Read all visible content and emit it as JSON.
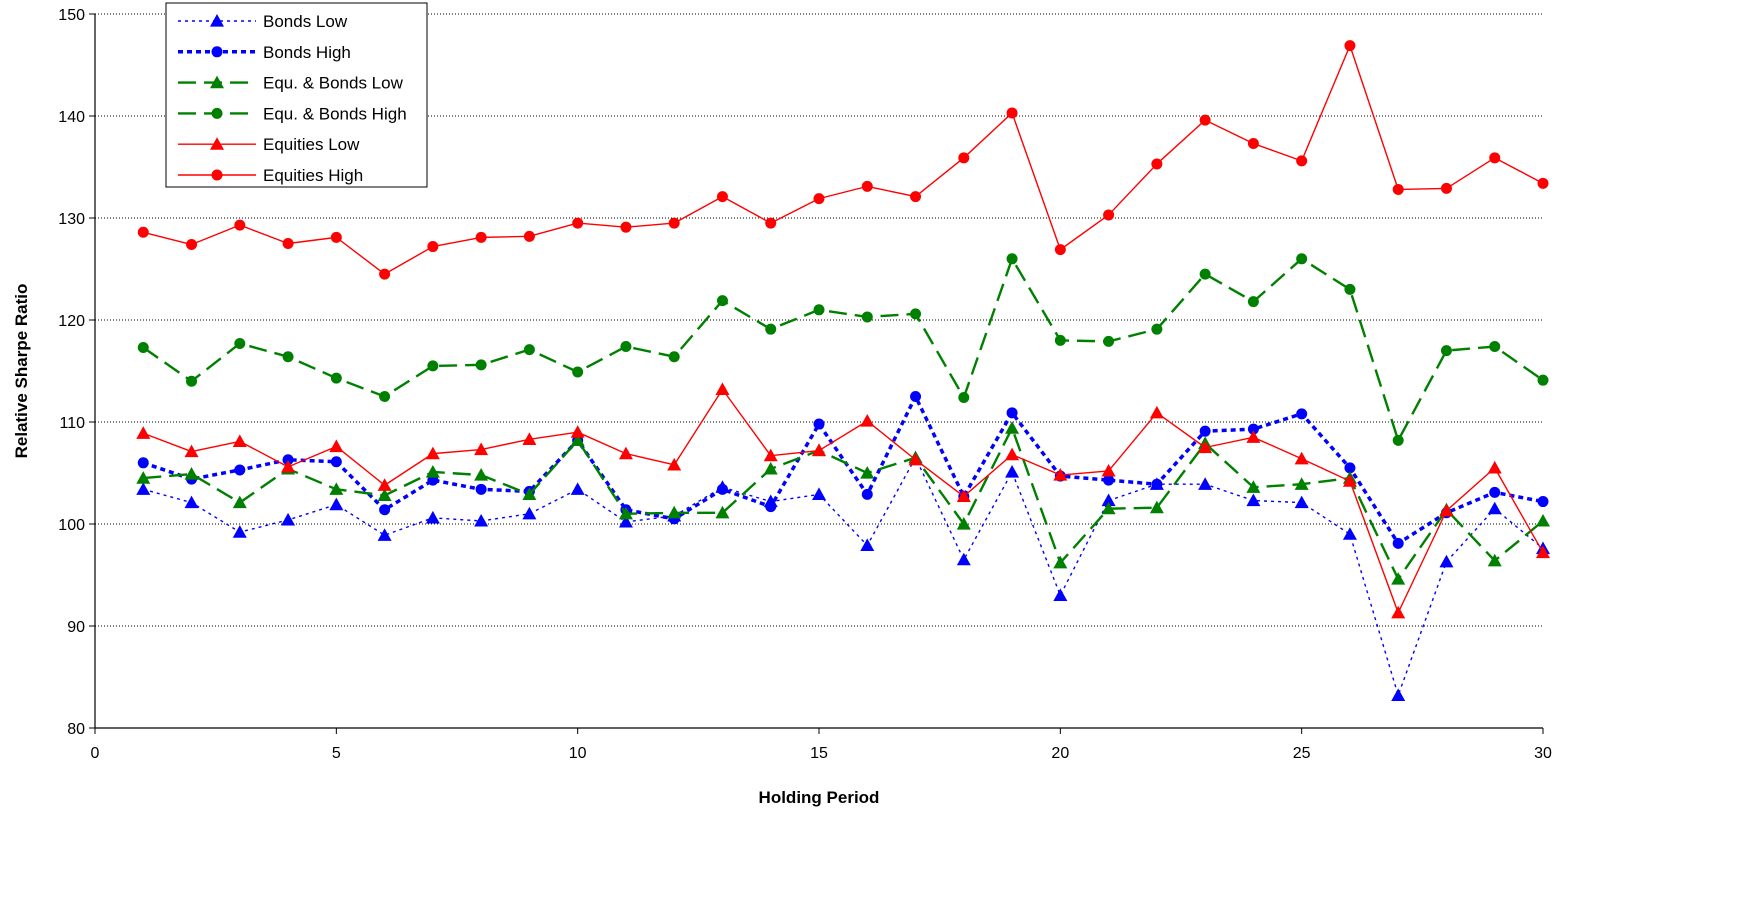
{
  "chart_data": {
    "type": "line",
    "xlabel": "Holding Period",
    "ylabel": "Relative Sharpe Ratio",
    "xlim": [
      0,
      30
    ],
    "ylim": [
      80,
      150
    ],
    "xticks": [
      0,
      5,
      10,
      15,
      20,
      25,
      30
    ],
    "yticks": [
      80,
      90,
      100,
      110,
      120,
      130,
      140,
      150
    ],
    "grid": "horizontal dotted",
    "legend_position": "top-left",
    "x": [
      1,
      2,
      3,
      4,
      5,
      6,
      7,
      8,
      9,
      10,
      11,
      12,
      13,
      14,
      15,
      16,
      17,
      18,
      19,
      20,
      21,
      22,
      23,
      24,
      25,
      26,
      27,
      28,
      29,
      30
    ],
    "series": [
      {
        "name": "Bonds Low",
        "color": "#0000ff",
        "marker": "triangle",
        "line_style": "fine-dotted",
        "values": [
          103.4,
          102.1,
          99.2,
          100.4,
          101.9,
          98.9,
          100.6,
          100.3,
          101.0,
          103.4,
          100.2,
          100.8,
          103.6,
          102.2,
          102.9,
          97.9,
          106.5,
          96.5,
          105.1,
          93.0,
          102.3,
          103.9,
          103.9,
          102.3,
          102.1,
          99.0,
          83.2,
          96.3,
          101.5,
          97.6
        ]
      },
      {
        "name": "Bonds High",
        "color": "#0000ff",
        "marker": "circle",
        "line_style": "dotted",
        "values": [
          106.0,
          104.4,
          105.3,
          106.3,
          106.1,
          101.4,
          104.3,
          103.4,
          103.2,
          108.2,
          101.4,
          100.5,
          103.4,
          101.7,
          109.8,
          102.9,
          112.5,
          102.7,
          110.9,
          104.7,
          104.3,
          103.9,
          109.1,
          109.3,
          110.8,
          105.5,
          98.1,
          101.1,
          103.1,
          102.2
        ]
      },
      {
        "name": "Equ. & Bonds Low",
        "color": "#008000",
        "marker": "triangle",
        "line_style": "dashed",
        "values": [
          104.5,
          104.9,
          102.1,
          105.4,
          103.4,
          102.8,
          105.1,
          104.8,
          102.9,
          108.2,
          101.0,
          101.1,
          101.1,
          105.4,
          107.2,
          105.0,
          106.5,
          100.0,
          109.4,
          96.2,
          101.5,
          101.6,
          107.9,
          103.6,
          103.9,
          104.5,
          94.6,
          101.4,
          96.4,
          100.3
        ]
      },
      {
        "name": "Equ. & Bonds High",
        "color": "#008000",
        "marker": "circle",
        "line_style": "dashed",
        "values": [
          117.3,
          114.0,
          117.7,
          116.4,
          114.3,
          112.5,
          115.5,
          115.6,
          117.1,
          114.9,
          117.4,
          116.4,
          121.9,
          119.1,
          121.0,
          120.3,
          120.6,
          112.4,
          126.0,
          118.0,
          117.9,
          119.1,
          124.5,
          121.8,
          126.0,
          123.0,
          108.2,
          117.0,
          117.4,
          114.1
        ]
      },
      {
        "name": "Equities Low",
        "color": "#ff0000",
        "marker": "triangle",
        "line_style": "solid",
        "values": [
          108.9,
          107.1,
          108.1,
          105.6,
          107.6,
          103.8,
          106.9,
          107.3,
          108.3,
          109.0,
          106.9,
          105.8,
          113.2,
          106.7,
          107.2,
          110.1,
          106.3,
          102.7,
          106.8,
          104.8,
          105.2,
          110.9,
          107.5,
          108.5,
          106.4,
          104.2,
          91.3,
          101.3,
          105.5,
          97.2
        ]
      },
      {
        "name": "Equities High",
        "color": "#ff0000",
        "marker": "circle",
        "line_style": "solid",
        "values": [
          128.6,
          127.4,
          129.3,
          127.5,
          128.1,
          124.5,
          127.2,
          128.1,
          128.2,
          129.5,
          129.1,
          129.5,
          132.1,
          129.5,
          131.9,
          133.1,
          132.1,
          135.9,
          140.3,
          126.9,
          130.3,
          135.3,
          139.6,
          137.3,
          135.6,
          146.9,
          132.8,
          132.9,
          135.9,
          133.4
        ]
      }
    ]
  }
}
